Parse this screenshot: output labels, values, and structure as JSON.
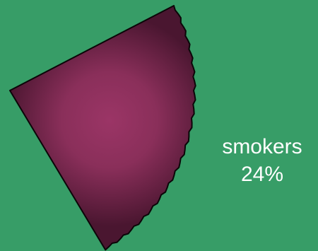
{
  "colors": {
    "background": "#379d67",
    "slice_fill": "#9b3566",
    "slice_shade": "#4a1630",
    "outline": "#0b0608",
    "label": "#ffffff"
  },
  "chart_data": {
    "type": "pie",
    "title": "",
    "slices": [
      {
        "name": "smokers",
        "value": 24,
        "label": "smokers",
        "value_label": "24%"
      }
    ],
    "legend": "none",
    "grid": false
  }
}
